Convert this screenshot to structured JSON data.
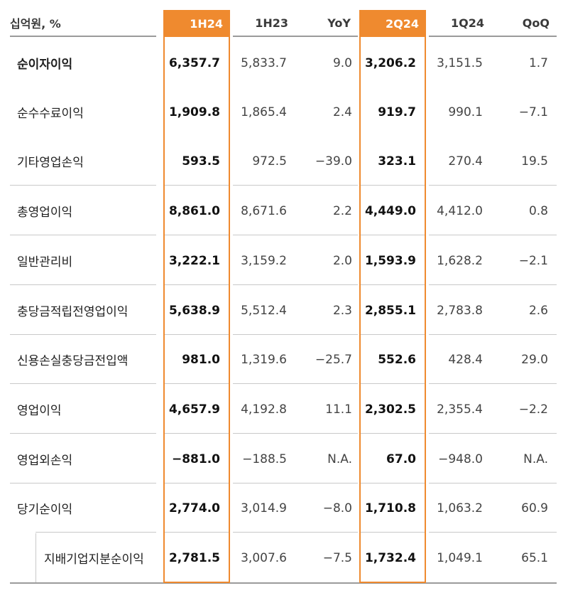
{
  "header": {
    "unit_label": "십억원, %",
    "columns": [
      "1H24",
      "1H23",
      "YoY",
      "2Q24",
      "1Q24",
      "QoQ"
    ]
  },
  "rows": [
    {
      "label": "순이자이익",
      "v1h24": "6,357.7",
      "v1h23": "5,833.7",
      "yoy": "9.0",
      "v2q24": "3,206.2",
      "v1q24": "3,151.5",
      "qoq": "1.7"
    },
    {
      "label": "순수수료이익",
      "v1h24": "1,909.8",
      "v1h23": "1,865.4",
      "yoy": "2.4",
      "v2q24": "919.7",
      "v1q24": "990.1",
      "qoq": "−7.1"
    },
    {
      "label": "기타영업손익",
      "v1h24": "593.5",
      "v1h23": "972.5",
      "yoy": "−39.0",
      "v2q24": "323.1",
      "v1q24": "270.4",
      "qoq": "19.5"
    },
    {
      "label": "총영업이익",
      "v1h24": "8,861.0",
      "v1h23": "8,671.6",
      "yoy": "2.2",
      "v2q24": "4,449.0",
      "v1q24": "4,412.0",
      "qoq": "0.8"
    },
    {
      "label": "일반관리비",
      "v1h24": "3,222.1",
      "v1h23": "3,159.2",
      "yoy": "2.0",
      "v2q24": "1,593.9",
      "v1q24": "1,628.2",
      "qoq": "−2.1"
    },
    {
      "label": "충당금적립전영업이익",
      "v1h24": "5,638.9",
      "v1h23": "5,512.4",
      "yoy": "2.3",
      "v2q24": "2,855.1",
      "v1q24": "2,783.8",
      "qoq": "2.6"
    },
    {
      "label": "신용손실충당금전입액",
      "v1h24": "981.0",
      "v1h23": "1,319.6",
      "yoy": "−25.7",
      "v2q24": "552.6",
      "v1q24": "428.4",
      "qoq": "29.0"
    },
    {
      "label": "영업이익",
      "v1h24": "4,657.9",
      "v1h23": "4,192.8",
      "yoy": "11.1",
      "v2q24": "2,302.5",
      "v1q24": "2,355.4",
      "qoq": "−2.2"
    },
    {
      "label": "영업외손익",
      "v1h24": "−881.0",
      "v1h23": "−188.5",
      "yoy": "N.A.",
      "v2q24": "67.0",
      "v1q24": "−948.0",
      "qoq": "N.A."
    },
    {
      "label": "당기순이익",
      "v1h24": "2,774.0",
      "v1h23": "3,014.9",
      "yoy": "−8.0",
      "v2q24": "1,710.8",
      "v1q24": "1,063.2",
      "qoq": "60.9"
    },
    {
      "label": "지배기업지분순이익",
      "v1h24": "2,781.5",
      "v1h23": "3,007.6",
      "yoy": "−7.5",
      "v2q24": "1,732.4",
      "v1q24": "1,049.1",
      "qoq": "65.1"
    }
  ],
  "colors": {
    "accent": "#ef8a2f",
    "rule": "#9b9b9b",
    "separator": "#c9c9c9"
  }
}
